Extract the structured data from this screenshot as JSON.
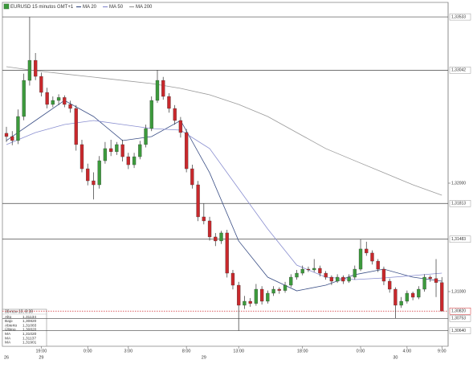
{
  "chart_data": {
    "type": "candlestick",
    "title": "EURUSD 15 minutos GMT+1",
    "ylim": [
      1.30496,
      1.33667
    ],
    "yticks": [
      {
        "value": 1.32,
        "label": "1,32000"
      },
      {
        "value": 1.31,
        "label": "1,31000"
      }
    ],
    "levels": [
      {
        "value": 1.33533,
        "label": "1,33533"
      },
      {
        "value": 1.33042,
        "label": "1,33042"
      },
      {
        "value": 1.31813,
        "label": "1,31813"
      },
      {
        "value": 1.31483,
        "label": "1,31483"
      },
      {
        "value": 1.30753,
        "label": "1,30753"
      },
      {
        "value": 1.3064,
        "label": "1,30640"
      }
    ],
    "last_price": {
      "value": 1.3082,
      "label": "1,30820",
      "color": "#d0282c"
    },
    "up_color": "#3c9a3c",
    "down_color": "#c8282c",
    "categories": [
      null,
      null,
      null,
      null,
      null,
      null,
      "19:00",
      null,
      null,
      null,
      null,
      null,
      null,
      null,
      "0:00",
      null,
      null,
      null,
      null,
      null,
      null,
      "3:00",
      null,
      null,
      null,
      null,
      null,
      null,
      null,
      null,
      null,
      "8:00",
      null,
      null,
      null,
      null,
      null,
      null,
      null,
      null,
      "13:00",
      null,
      null,
      null,
      null,
      null,
      null,
      null,
      null,
      null,
      null,
      "18:00",
      null,
      null,
      null,
      null,
      null,
      null,
      null,
      null,
      null,
      "0:00",
      null,
      null,
      null,
      null,
      null,
      null,
      null,
      "4:00",
      null,
      null,
      null,
      null,
      null,
      "9:00"
    ],
    "dates": [
      "26",
      null,
      null,
      null,
      null,
      null,
      "29",
      null,
      null,
      null,
      null,
      null,
      null,
      null,
      null,
      null,
      null,
      null,
      null,
      null,
      null,
      null,
      null,
      null,
      null,
      null,
      null,
      null,
      null,
      null,
      null,
      null,
      null,
      null,
      "29",
      null,
      null,
      null,
      null,
      null,
      null,
      null,
      null,
      null,
      null,
      null,
      null,
      null,
      null,
      null,
      null,
      null,
      null,
      null,
      null,
      null,
      null,
      null,
      null,
      null,
      null,
      null,
      null,
      null,
      null,
      null,
      null,
      "30",
      null,
      null,
      null,
      null,
      null,
      null,
      null,
      null
    ],
    "candles": [
      [
        1.3246,
        1.3252,
        1.3238,
        1.3243
      ],
      [
        1.3243,
        1.3248,
        1.3235,
        1.32393
      ],
      [
        1.32393,
        1.3268,
        1.3236,
        1.32615
      ],
      [
        1.32615,
        1.3301,
        1.3258,
        1.32948
      ],
      [
        1.32948,
        1.33533,
        1.329,
        1.33133
      ],
      [
        1.33133,
        1.332,
        1.3295,
        1.32985
      ],
      [
        1.32985,
        1.3302,
        1.328,
        1.32837
      ],
      [
        1.32837,
        1.3288,
        1.3269,
        1.32726
      ],
      [
        1.32726,
        1.328,
        1.327,
        1.32763
      ],
      [
        1.32763,
        1.3282,
        1.3272,
        1.3279
      ],
      [
        1.3279,
        1.3281,
        1.327,
        1.32726
      ],
      [
        1.32726,
        1.3276,
        1.3265,
        1.32689
      ],
      [
        1.32689,
        1.3272,
        1.323,
        1.32356
      ],
      [
        1.32356,
        1.324,
        1.321,
        1.32133
      ],
      [
        1.32133,
        1.3218,
        1.3198,
        1.32022
      ],
      [
        1.32022,
        1.321,
        1.3185,
        1.31985
      ],
      [
        1.31985,
        1.3225,
        1.3195,
        1.32207
      ],
      [
        1.32207,
        1.3238,
        1.3218,
        1.32319
      ],
      [
        1.32319,
        1.324,
        1.3225,
        1.3229
      ],
      [
        1.3229,
        1.3238,
        1.3226,
        1.32356
      ],
      [
        1.32356,
        1.324,
        1.322,
        1.32244
      ],
      [
        1.32244,
        1.3228,
        1.3213,
        1.3217
      ],
      [
        1.3217,
        1.3228,
        1.3214,
        1.32244
      ],
      [
        1.32244,
        1.3239,
        1.3222,
        1.32356
      ],
      [
        1.32356,
        1.3254,
        1.3233,
        1.32504
      ],
      [
        1.32504,
        1.328,
        1.3248,
        1.32763
      ],
      [
        1.32763,
        1.33042,
        1.3274,
        1.32948
      ],
      [
        1.32948,
        1.3298,
        1.3277,
        1.328
      ],
      [
        1.328,
        1.3283,
        1.3265,
        1.32689
      ],
      [
        1.32689,
        1.3272,
        1.3254,
        1.32578
      ],
      [
        1.32578,
        1.3261,
        1.3242,
        1.32467
      ],
      [
        1.32467,
        1.325,
        1.321,
        1.32133
      ],
      [
        1.32133,
        1.3217,
        1.3195,
        1.31985
      ],
      [
        1.31985,
        1.3202,
        1.3165,
        1.31689
      ],
      [
        1.31689,
        1.31813,
        1.3162,
        1.31652
      ],
      [
        1.31652,
        1.3169,
        1.3147,
        1.31504
      ],
      [
        1.31504,
        1.3154,
        1.3142,
        1.31467
      ],
      [
        1.31467,
        1.3156,
        1.3144,
        1.31541
      ],
      [
        1.31541,
        1.3157,
        1.3113,
        1.3117
      ],
      [
        1.3117,
        1.312,
        1.3102,
        1.31059
      ],
      [
        1.31059,
        1.3109,
        1.3064,
        1.30874
      ],
      [
        1.30874,
        1.3096,
        1.3084,
        1.30911
      ],
      [
        1.30911,
        1.3094,
        1.3086,
        1.3089
      ],
      [
        1.3089,
        1.3107,
        1.3087,
        1.31022
      ],
      [
        1.31022,
        1.3105,
        1.3088,
        1.30911
      ],
      [
        1.30911,
        1.3101,
        1.3089,
        1.30985
      ],
      [
        1.30985,
        1.3105,
        1.3096,
        1.31022
      ],
      [
        1.31022,
        1.3104,
        1.3098,
        1.3101
      ],
      [
        1.3101,
        1.3109,
        1.3099,
        1.31059
      ],
      [
        1.31059,
        1.3116,
        1.3104,
        1.31133
      ],
      [
        1.31133,
        1.312,
        1.3111,
        1.3117
      ],
      [
        1.3117,
        1.3124,
        1.3115,
        1.31207
      ],
      [
        1.31207,
        1.3123,
        1.3118,
        1.312
      ],
      [
        1.312,
        1.313,
        1.3118,
        1.31215
      ],
      [
        1.31215,
        1.3124,
        1.3114,
        1.3117
      ],
      [
        1.3117,
        1.3119,
        1.3111,
        1.31133
      ],
      [
        1.31133,
        1.3115,
        1.3106,
        1.31096
      ],
      [
        1.31096,
        1.3116,
        1.3108,
        1.31133
      ],
      [
        1.31133,
        1.3115,
        1.3107,
        1.31096
      ],
      [
        1.31096,
        1.3116,
        1.3108,
        1.31133
      ],
      [
        1.31133,
        1.3124,
        1.3111,
        1.31207
      ],
      [
        1.31207,
        1.31483,
        1.3119,
        1.31393
      ],
      [
        1.31393,
        1.3146,
        1.3133,
        1.31356
      ],
      [
        1.31356,
        1.3138,
        1.3125,
        1.31281
      ],
      [
        1.31281,
        1.313,
        1.3118,
        1.31207
      ],
      [
        1.31207,
        1.3123,
        1.3106,
        1.31096
      ],
      [
        1.31096,
        1.3112,
        1.3099,
        1.31022
      ],
      [
        1.31022,
        1.3104,
        1.30753,
        1.30874
      ],
      [
        1.30874,
        1.3095,
        1.3085,
        1.30911
      ],
      [
        1.30911,
        1.3101,
        1.3089,
        1.30985
      ],
      [
        1.30985,
        1.31,
        1.3092,
        1.30948
      ],
      [
        1.30948,
        1.3105,
        1.3093,
        1.31022
      ],
      [
        1.31022,
        1.3116,
        1.31,
        1.31133
      ],
      [
        1.31133,
        1.3115,
        1.3109,
        1.3112
      ],
      [
        1.3112,
        1.313,
        1.3095,
        1.31083
      ],
      [
        1.31083,
        1.31134,
        1.3082,
        1.3082
      ]
    ],
    "series": [
      {
        "name": "MA 20",
        "color": "#3b4f86",
        "x": [
          0,
          5,
          10,
          15,
          20,
          25,
          30,
          35,
          40,
          45,
          50,
          55,
          60,
          65,
          70,
          75
        ],
        "values": [
          1.32393,
          1.32578,
          1.32763,
          1.32615,
          1.32393,
          1.3243,
          1.32578,
          1.32096,
          1.31467,
          1.31133,
          1.31007,
          1.31059,
          1.31156,
          1.31207,
          1.31133,
          1.31096
        ]
      },
      {
        "name": "MA 50",
        "color": "#8a8fd0",
        "x": [
          0,
          5,
          10,
          15,
          20,
          25,
          30,
          35,
          40,
          45,
          50,
          55,
          60,
          65,
          70,
          75
        ],
        "values": [
          1.32356,
          1.32467,
          1.32541,
          1.32578,
          1.32541,
          1.32504,
          1.32489,
          1.32319,
          1.31948,
          1.31578,
          1.31244,
          1.31133,
          1.31111,
          1.31126,
          1.31148,
          1.3117
        ]
      },
      {
        "name": "MA 200",
        "color": "#9a9a9a",
        "x": [
          0,
          5,
          10,
          15,
          20,
          25,
          30,
          35,
          40,
          45,
          50,
          55,
          60,
          65,
          70,
          75
        ],
        "values": [
          1.33074,
          1.33037,
          1.33007,
          1.32978,
          1.32948,
          1.32919,
          1.32874,
          1.32815,
          1.32726,
          1.32615,
          1.32467,
          1.32319,
          1.32207,
          1.32096,
          1.31985,
          1.31889
        ]
      }
    ],
    "info": {
      "date": "30-nov-10, 8:30",
      "rows": [
        [
          "Alto",
          "1,31134"
        ],
        [
          "Bajo",
          "1,30820"
        ],
        [
          "Abierto",
          "1,31083"
        ],
        [
          "Último",
          "1,30820"
        ],
        [
          "MA",
          "1,31020"
        ],
        [
          "MA",
          "1,31137"
        ],
        [
          "MA",
          "1,31901"
        ]
      ]
    }
  }
}
